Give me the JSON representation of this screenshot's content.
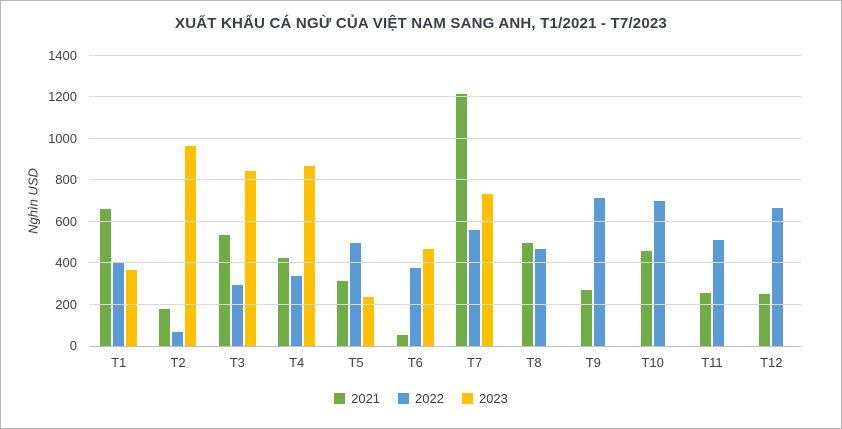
{
  "title": "XUẤT KHẨU CÁ NGỪ CỦA VIỆT NAM SANG ANH, T1/2021 - T7/2023",
  "ylabel": "Nghìn USD",
  "chart_data": {
    "type": "bar",
    "title": "XUẤT KHẨU CÁ NGỪ CỦA VIỆT NAM SANG ANH, T1/2021 - T7/2023",
    "xlabel": "",
    "ylabel": "Nghìn USD",
    "categories": [
      "T1",
      "T2",
      "T3",
      "T4",
      "T5",
      "T6",
      "T7",
      "T8",
      "T9",
      "T10",
      "T11",
      "T12"
    ],
    "series": [
      {
        "name": "2021",
        "color": "#70AD47",
        "values": [
          660,
          180,
          535,
          425,
          315,
          55,
          1215,
          495,
          270,
          460,
          255,
          250
        ]
      },
      {
        "name": "2022",
        "color": "#5B9BD5",
        "values": [
          405,
          70,
          295,
          340,
          495,
          375,
          560,
          470,
          715,
          700,
          510,
          665
        ]
      },
      {
        "name": "2023",
        "color": "#FFC000",
        "values": [
          365,
          965,
          845,
          870,
          235,
          470,
          735,
          null,
          null,
          null,
          null,
          null
        ]
      }
    ],
    "ylim": [
      0,
      1400
    ],
    "ytick_interval": 200,
    "grid": true,
    "legend_position": "bottom"
  }
}
